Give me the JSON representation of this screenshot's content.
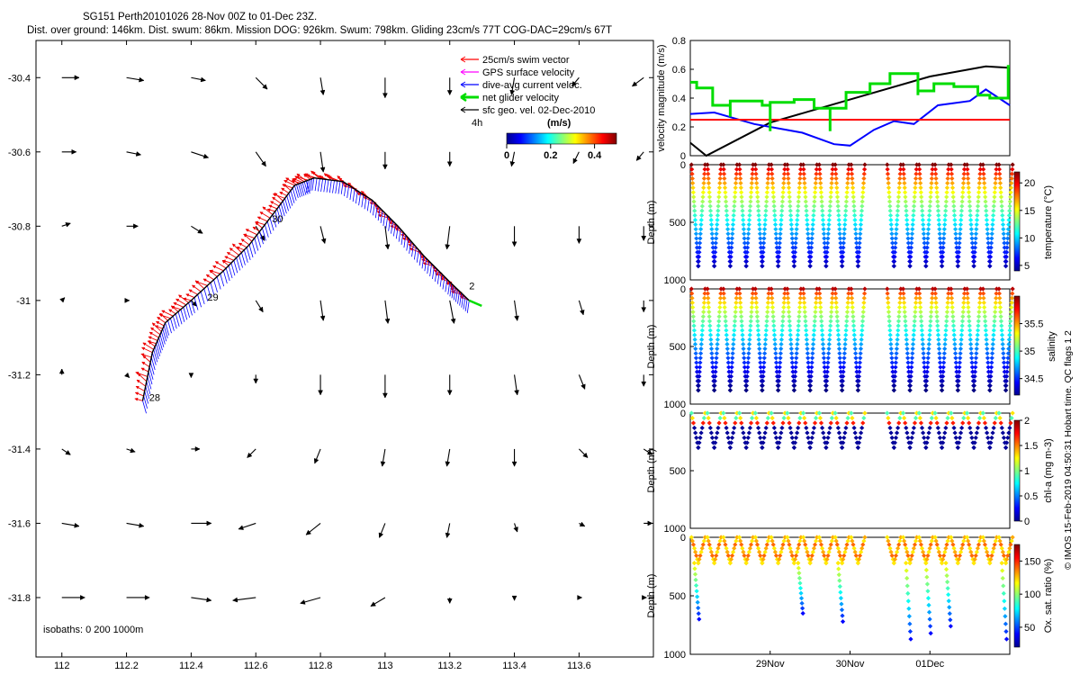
{
  "title": {
    "line1": "SG151 Perth20101026 28-Nov 00Z to 01-Dec 23Z.",
    "line2": "Dist. over ground: 146km. Dist. swum: 86km. Mission DOG: 926km. Swum: 798km. Gliding 23cm/s 77T COG-DAC=29cm/s 67T"
  },
  "side_label": "© IMOS 15-Feb-2019 04:50:31 Hobart time. QC flags 1  2",
  "chart_data": [
    {
      "type": "scatter",
      "id": "map",
      "xlim": [
        111.92,
        113.83
      ],
      "ylim": [
        -31.96,
        -30.3
      ],
      "xticks": [
        "112",
        "112.2",
        "112.4",
        "112.6",
        "112.8",
        "113",
        "113.2",
        "113.4",
        "113.6"
      ],
      "yticks": [
        "-30.4",
        "-30.6",
        "-30.8",
        "-31",
        "-31.2",
        "-31.4",
        "-31.6",
        "-31.8"
      ],
      "legend": {
        "swim": "25cm/s swim vector",
        "gps": "GPS surface velocity",
        "dac": "dive-avg current veloc.",
        "net": "net glider velocity",
        "sfc": "sfc geo. vel. 02-Dec-2010",
        "time_label": "4h"
      },
      "colorbar": {
        "title": "(m/s)",
        "ticks": [
          "0",
          "0.2",
          "0.4"
        ],
        "range": [
          0,
          0.5
        ]
      },
      "isobaths": "isobaths: 0   200  1000m",
      "track": [
        [
          112.25,
          -31.27
        ],
        [
          112.28,
          -31.14
        ],
        [
          112.32,
          -31.06
        ],
        [
          112.4,
          -31.0
        ],
        [
          112.5,
          -30.92
        ],
        [
          112.58,
          -30.85
        ],
        [
          112.66,
          -30.76
        ],
        [
          112.72,
          -30.69
        ],
        [
          112.78,
          -30.67
        ],
        [
          112.87,
          -30.68
        ],
        [
          112.96,
          -30.73
        ],
        [
          113.04,
          -30.8
        ],
        [
          113.12,
          -30.88
        ],
        [
          113.2,
          -30.95
        ],
        [
          113.26,
          -31.0
        ]
      ],
      "day_labels": [
        {
          "text": "28",
          "lon": 112.27,
          "lat": -31.27
        },
        {
          "text": "29",
          "lon": 112.45,
          "lat": -31.0
        },
        {
          "text": "30",
          "lon": 112.65,
          "lat": -30.79
        },
        {
          "text": "2",
          "lon": 113.26,
          "lat": -30.97
        }
      ],
      "geo_vectors": [
        [
          112.0,
          -30.4,
          0.12,
          0.0
        ],
        [
          112.2,
          -30.4,
          0.12,
          -0.02
        ],
        [
          112.4,
          -30.4,
          0.1,
          -0.02
        ],
        [
          112.6,
          -30.4,
          0.08,
          -0.08
        ],
        [
          112.8,
          -30.4,
          0.02,
          -0.12
        ],
        [
          113.0,
          -30.4,
          0.0,
          -0.14
        ],
        [
          113.2,
          -30.4,
          0.0,
          -0.12
        ],
        [
          113.4,
          -30.4,
          -0.02,
          -0.12
        ],
        [
          113.6,
          -30.4,
          -0.05,
          -0.06
        ],
        [
          113.8,
          -30.4,
          -0.08,
          -0.06
        ],
        [
          112.0,
          -30.6,
          0.1,
          0.0
        ],
        [
          112.2,
          -30.6,
          0.1,
          -0.02
        ],
        [
          112.4,
          -30.6,
          0.12,
          -0.04
        ],
        [
          112.6,
          -30.6,
          0.07,
          -0.1
        ],
        [
          112.8,
          -30.6,
          0.02,
          -0.14
        ],
        [
          113.0,
          -30.6,
          0.0,
          -0.12
        ],
        [
          113.2,
          -30.6,
          0.0,
          -0.1
        ],
        [
          113.4,
          -30.6,
          -0.02,
          -0.1
        ],
        [
          113.6,
          -30.6,
          -0.04,
          -0.08
        ],
        [
          113.8,
          -30.6,
          -0.05,
          -0.06
        ],
        [
          112.0,
          -30.8,
          0.06,
          0.02
        ],
        [
          112.2,
          -30.8,
          0.08,
          0.0
        ],
        [
          112.4,
          -30.8,
          0.08,
          -0.05
        ],
        [
          112.6,
          -30.8,
          0.06,
          -0.1
        ],
        [
          112.8,
          -30.8,
          0.03,
          -0.12
        ],
        [
          113.0,
          -30.8,
          0.02,
          -0.16
        ],
        [
          113.2,
          -30.8,
          -0.02,
          -0.16
        ],
        [
          113.4,
          -30.8,
          0.0,
          -0.14
        ],
        [
          113.6,
          -30.8,
          0.0,
          -0.12
        ],
        [
          113.8,
          -30.8,
          0.0,
          -0.1
        ],
        [
          112.0,
          -31.0,
          0.02,
          0.02
        ],
        [
          112.2,
          -31.0,
          0.02,
          0.0
        ],
        [
          112.4,
          -31.0,
          0.04,
          -0.04
        ],
        [
          112.6,
          -31.0,
          0.05,
          -0.08
        ],
        [
          112.8,
          -31.0,
          0.02,
          -0.14
        ],
        [
          113.0,
          -31.0,
          0.02,
          -0.16
        ],
        [
          113.2,
          -31.0,
          0.03,
          -0.16
        ],
        [
          113.4,
          -31.0,
          0.02,
          -0.14
        ],
        [
          113.6,
          -31.0,
          0.03,
          -0.1
        ],
        [
          113.8,
          -31.0,
          0.0,
          -0.08
        ],
        [
          112.0,
          -31.2,
          0.0,
          0.04
        ],
        [
          112.2,
          -31.2,
          0.02,
          -0.02
        ],
        [
          112.4,
          -31.2,
          0.0,
          -0.02
        ],
        [
          112.6,
          -31.2,
          0.0,
          -0.06
        ],
        [
          112.8,
          -31.2,
          0.0,
          -0.14
        ],
        [
          113.0,
          -31.2,
          0.0,
          -0.16
        ],
        [
          113.2,
          -31.2,
          0.0,
          -0.14
        ],
        [
          113.4,
          -31.2,
          0.02,
          -0.14
        ],
        [
          113.6,
          -31.2,
          0.04,
          -0.1
        ],
        [
          113.8,
          -31.2,
          0.0,
          -0.08
        ],
        [
          112.0,
          -31.4,
          0.06,
          -0.04
        ],
        [
          112.2,
          -31.4,
          0.06,
          -0.02
        ],
        [
          112.4,
          -31.4,
          0.06,
          0.0
        ],
        [
          112.6,
          -31.4,
          -0.06,
          -0.06
        ],
        [
          112.8,
          -31.4,
          -0.04,
          -0.1
        ],
        [
          113.0,
          -31.4,
          -0.02,
          -0.12
        ],
        [
          113.2,
          -31.4,
          -0.02,
          -0.12
        ],
        [
          113.4,
          -31.4,
          0.0,
          -0.12
        ],
        [
          113.6,
          -31.4,
          0.06,
          -0.06
        ],
        [
          113.8,
          -31.4,
          0.06,
          -0.04
        ],
        [
          112.0,
          -31.6,
          0.12,
          -0.02
        ],
        [
          112.2,
          -31.6,
          0.12,
          -0.02
        ],
        [
          112.4,
          -31.6,
          0.14,
          0.0
        ],
        [
          112.6,
          -31.6,
          -0.12,
          -0.04
        ],
        [
          112.8,
          -31.6,
          -0.1,
          -0.08
        ],
        [
          113.0,
          -31.6,
          -0.04,
          -0.1
        ],
        [
          113.2,
          -31.6,
          -0.02,
          -0.1
        ],
        [
          113.4,
          -31.6,
          0.02,
          -0.06
        ],
        [
          113.6,
          -31.6,
          0.04,
          -0.02
        ],
        [
          113.8,
          -31.6,
          0.06,
          0.0
        ],
        [
          112.0,
          -31.8,
          0.16,
          0.0
        ],
        [
          112.2,
          -31.8,
          0.16,
          0.0
        ],
        [
          112.4,
          -31.8,
          0.14,
          -0.02
        ],
        [
          112.6,
          -31.8,
          -0.16,
          -0.02
        ],
        [
          112.8,
          -31.8,
          -0.14,
          -0.04
        ],
        [
          113.0,
          -31.8,
          -0.1,
          -0.06
        ],
        [
          113.2,
          -31.8,
          0.0,
          -0.04
        ],
        [
          113.4,
          -31.8,
          0.0,
          -0.02
        ],
        [
          113.6,
          -31.8,
          0.02,
          0.0
        ],
        [
          113.8,
          -31.8,
          0.02,
          0.0
        ]
      ]
    },
    {
      "type": "line",
      "id": "velocity",
      "xlim": [
        0,
        4
      ],
      "ylim": [
        0,
        0.8
      ],
      "ylabel": "velocity magnitude (m/s)",
      "yticks": [
        "0",
        "0.2",
        "0.4",
        "0.6",
        "0.8"
      ],
      "series": [
        {
          "name": "black",
          "color": "#000000",
          "points": [
            [
              0,
              0.09
            ],
            [
              0.2,
              0.0
            ],
            [
              1.0,
              0.23
            ],
            [
              2.0,
              0.39
            ],
            [
              3.0,
              0.55
            ],
            [
              3.7,
              0.62
            ],
            [
              4.0,
              0.61
            ]
          ]
        },
        {
          "name": "blue",
          "color": "#0000ff",
          "points": [
            [
              0,
              0.29
            ],
            [
              0.3,
              0.3
            ],
            [
              0.8,
              0.22
            ],
            [
              1.4,
              0.16
            ],
            [
              1.8,
              0.08
            ],
            [
              2.0,
              0.07
            ],
            [
              2.3,
              0.18
            ],
            [
              2.55,
              0.24
            ],
            [
              2.8,
              0.22
            ],
            [
              3.1,
              0.35
            ],
            [
              3.5,
              0.38
            ],
            [
              3.7,
              0.46
            ],
            [
              4.0,
              0.35
            ]
          ]
        },
        {
          "name": "red",
          "color": "#ff0000",
          "points": [
            [
              0,
              0.25
            ],
            [
              4.0,
              0.25
            ]
          ]
        },
        {
          "name": "green",
          "color": "#00dd00",
          "points": [
            [
              0,
              0.51
            ],
            [
              0.08,
              0.51
            ],
            [
              0.08,
              0.47
            ],
            [
              0.28,
              0.47
            ],
            [
              0.28,
              0.35
            ],
            [
              0.5,
              0.35
            ],
            [
              0.5,
              0.27
            ],
            [
              0.5,
              0.38
            ],
            [
              0.9,
              0.38
            ],
            [
              0.9,
              0.35
            ],
            [
              1.0,
              0.35
            ],
            [
              1.0,
              0.17
            ],
            [
              1.0,
              0.37
            ],
            [
              1.3,
              0.37
            ],
            [
              1.3,
              0.39
            ],
            [
              1.55,
              0.39
            ],
            [
              1.55,
              0.33
            ],
            [
              1.75,
              0.33
            ],
            [
              1.75,
              0.17
            ],
            [
              1.75,
              0.33
            ],
            [
              1.95,
              0.33
            ],
            [
              1.95,
              0.44
            ],
            [
              2.25,
              0.44
            ],
            [
              2.25,
              0.5
            ],
            [
              2.5,
              0.5
            ],
            [
              2.5,
              0.57
            ],
            [
              2.85,
              0.57
            ],
            [
              2.85,
              0.42
            ],
            [
              2.85,
              0.45
            ],
            [
              3.05,
              0.45
            ],
            [
              3.05,
              0.5
            ],
            [
              3.3,
              0.5
            ],
            [
              3.3,
              0.48
            ],
            [
              3.6,
              0.48
            ],
            [
              3.6,
              0.42
            ],
            [
              3.75,
              0.42
            ],
            [
              3.75,
              0.4
            ],
            [
              3.98,
              0.4
            ],
            [
              3.98,
              0.62
            ],
            [
              4.0,
              0.62
            ]
          ]
        }
      ]
    },
    {
      "type": "scatter",
      "id": "temperature",
      "xlim": [
        0,
        4
      ],
      "ylim": [
        0,
        1000
      ],
      "ylabel": "Depth (m)",
      "yticks": [
        "0",
        "500",
        "1000"
      ],
      "cbar_label": "temperature (°C)",
      "cbar_range": [
        4,
        22
      ],
      "cbar_ticks": [
        5,
        10,
        15,
        20
      ],
      "colormap": "jet",
      "profile": "temp",
      "max_depth": 880,
      "dive_times": [
        0.1,
        0.3,
        0.5,
        0.7,
        0.9,
        1.1,
        1.3,
        1.5,
        1.7,
        1.9,
        2.1,
        2.55,
        2.75,
        2.95,
        3.15,
        3.35,
        3.55,
        3.75,
        3.95
      ]
    },
    {
      "type": "scatter",
      "id": "salinity",
      "xlim": [
        0,
        4
      ],
      "ylim": [
        0,
        1000
      ],
      "ylabel": "Depth (m)",
      "yticks": [
        "0",
        "500",
        "1000"
      ],
      "cbar_label": "salinity",
      "cbar_range": [
        34.2,
        36.0
      ],
      "cbar_ticks": [
        34.5,
        35,
        35.5
      ],
      "colormap": "jet",
      "profile": "sal",
      "max_depth": 880,
      "dive_times": [
        0.1,
        0.3,
        0.5,
        0.7,
        0.9,
        1.1,
        1.3,
        1.5,
        1.7,
        1.9,
        2.1,
        2.55,
        2.75,
        2.95,
        3.15,
        3.35,
        3.55,
        3.75,
        3.95
      ]
    },
    {
      "type": "scatter",
      "id": "chla",
      "xlim": [
        0,
        4
      ],
      "ylim": [
        0,
        1000
      ],
      "ylabel": "Depth (m)",
      "yticks": [
        "0",
        "500",
        "1000"
      ],
      "cbar_label": "chl-a (mg m-3)",
      "cbar_range": [
        0,
        2
      ],
      "cbar_ticks": [
        0,
        0.5,
        1,
        1.5,
        2
      ],
      "colormap": "jet",
      "profile": "chl",
      "max_depth": 300,
      "dive_times": [
        0.1,
        0.3,
        0.5,
        0.7,
        0.9,
        1.1,
        1.3,
        1.5,
        1.7,
        1.9,
        2.1,
        2.55,
        2.75,
        2.95,
        3.15,
        3.35,
        3.55,
        3.75,
        3.95
      ]
    },
    {
      "type": "scatter",
      "id": "oxygen",
      "xlim": [
        0,
        4
      ],
      "ylim": [
        0,
        1000
      ],
      "ylabel": "Depth (m)",
      "yticks": [
        "0",
        "500",
        "1000"
      ],
      "cbar_label": "Ox. sat. ratio (%)",
      "cbar_range": [
        20,
        175
      ],
      "cbar_ticks": [
        50,
        100,
        150
      ],
      "xticks": [
        {
          "label": "29Nov",
          "x": 1.0
        },
        {
          "label": "30Nov",
          "x": 2.0
        },
        {
          "label": "01Dec",
          "x": 3.0
        }
      ],
      "colormap": "jet",
      "profile": "ox",
      "max_depth": 220,
      "dive_times": [
        0.1,
        0.3,
        0.5,
        0.7,
        0.9,
        1.1,
        1.3,
        1.5,
        1.7,
        1.9,
        2.1,
        2.55,
        2.75,
        2.95,
        3.15,
        3.35,
        3.55,
        3.75,
        3.95
      ],
      "deep_dives": [
        {
          "t": 0.05,
          "depth": 700
        },
        {
          "t": 1.35,
          "depth": 650
        },
        {
          "t": 1.85,
          "depth": 720
        },
        {
          "t": 2.7,
          "depth": 870
        },
        {
          "t": 2.95,
          "depth": 820
        },
        {
          "t": 3.2,
          "depth": 760
        },
        {
          "t": 3.9,
          "depth": 870
        }
      ]
    }
  ]
}
